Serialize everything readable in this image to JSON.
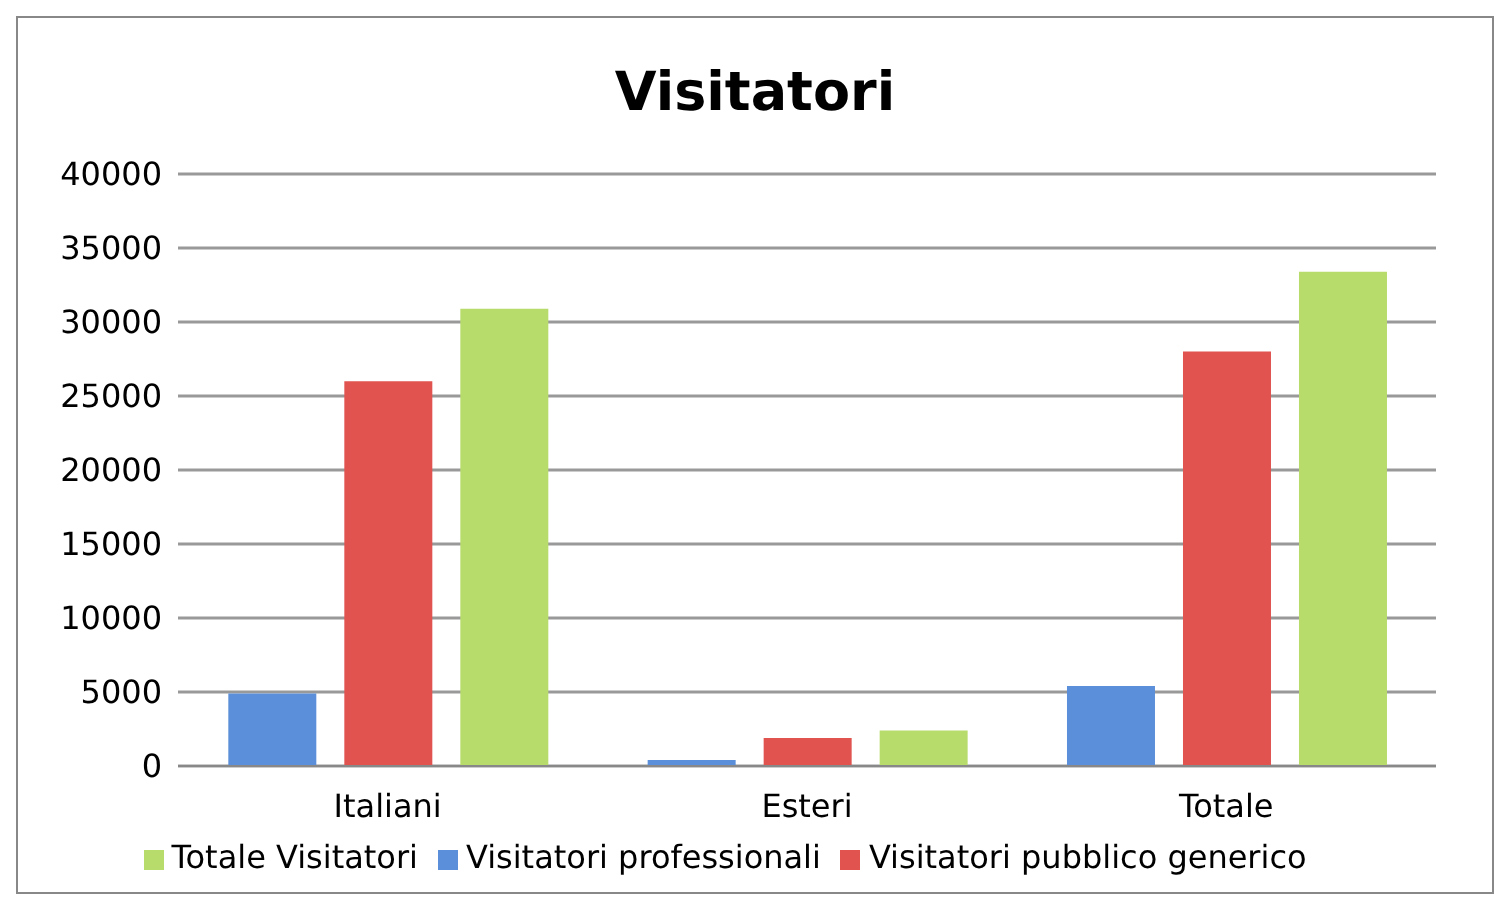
{
  "chart_data": {
    "type": "bar",
    "title": "Visitatori",
    "categories": [
      "Italiani",
      "Esteri",
      "Totale"
    ],
    "series": [
      {
        "name": "Visitatori professionali",
        "color": "#5b8fd9",
        "values": [
          4900,
          400,
          5400
        ]
      },
      {
        "name": "Visitatori pubblico generico",
        "color": "#e0534f",
        "values": [
          26000,
          1900,
          28000
        ]
      },
      {
        "name": "Totale Visitatori",
        "color": "#b8dc6c",
        "values": [
          30900,
          2400,
          33400
        ]
      }
    ],
    "ylim": [
      0,
      40000
    ],
    "yticks": [
      0,
      5000,
      10000,
      15000,
      20000,
      25000,
      30000,
      35000,
      40000
    ],
    "grid": "y",
    "legend": "bottom"
  }
}
